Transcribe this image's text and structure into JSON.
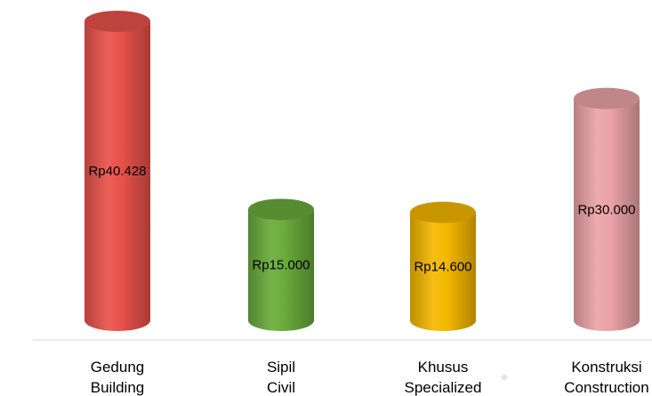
{
  "chart_data": {
    "type": "bar",
    "title": "",
    "categories": [
      {
        "line1": "Gedung",
        "line2": "Building"
      },
      {
        "line1": "Sipil",
        "line2": "Civil"
      },
      {
        "line1": "Khusus",
        "line2": "Specialized"
      },
      {
        "line1": "Konstruksi",
        "line2": "Construction"
      }
    ],
    "values": [
      40428,
      15000,
      14600,
      30000
    ],
    "value_labels": [
      "Rp40.428",
      "Rp15.000",
      "Rp14.600",
      "Rp30.000"
    ],
    "colors": [
      "#e8524b",
      "#6aab3c",
      "#f4b800",
      "#eba3a8"
    ],
    "bar_style": "cylinder",
    "ylim": [
      0,
      40428
    ],
    "grid": false,
    "legend": "none"
  }
}
